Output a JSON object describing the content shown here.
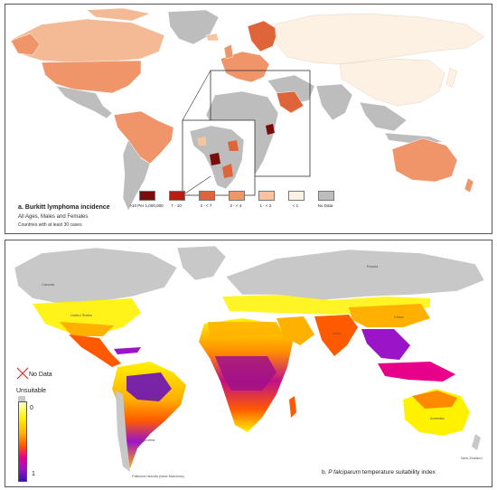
{
  "panel_a": {
    "title": "a.  Burkitt lymphoma incidence",
    "subtitle": "All Ages, Males and Females",
    "note": "Countries with at least 30 cases",
    "legend": [
      {
        "label": ">10 Per 1,000,000",
        "color": "#7a0c0c"
      },
      {
        "label": "7 - 10",
        "color": "#b81d14"
      },
      {
        "label": "4 - < 7",
        "color": "#e0643a"
      },
      {
        "label": "2 - < 4",
        "color": "#f0946a"
      },
      {
        "label": "1 - < 2",
        "color": "#f7c49f"
      },
      {
        "label": "< 1",
        "color": "#fdf1e3"
      },
      {
        "label": "No Data",
        "color": "#bdbdbd"
      }
    ]
  },
  "panel_b": {
    "caption_prefix": "b. ",
    "caption_italic": "P falciparum",
    "caption_suffix": " temperature suitability index",
    "legend": {
      "nodata": "No Data",
      "unsuitable": "Unsuitable",
      "min_label": "0",
      "max_label": "1"
    },
    "country_labels": [
      "Canada",
      "United States",
      "Brazil",
      "Russia",
      "China",
      "India",
      "Australia",
      "Argentina",
      "New Zealand",
      "Falkland Islands (Islas Malvinas)"
    ]
  },
  "colors": {
    "nodata": "#bdbdbd",
    "unsuitable": "#c8c8c8",
    "ramp": [
      "#ffffd0",
      "#fff200",
      "#ffb000",
      "#ff5a00",
      "#e8008a",
      "#9a14c8",
      "#3a10a8"
    ]
  }
}
